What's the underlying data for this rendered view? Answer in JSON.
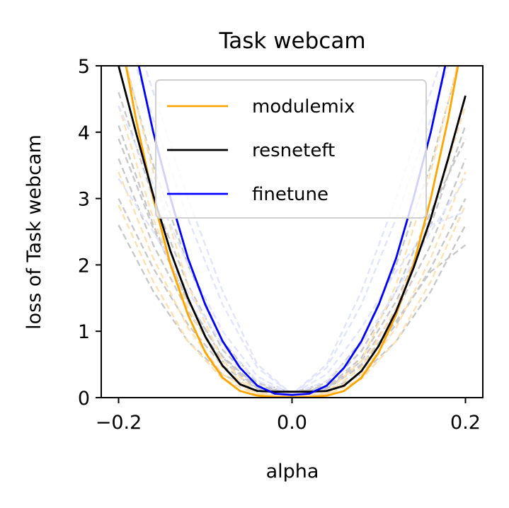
{
  "chart_data": {
    "type": "line",
    "title": "Task webcam",
    "xlabel": "alpha",
    "ylabel": "loss of Task webcam",
    "xlim": [
      -0.22,
      0.22
    ],
    "ylim": [
      0,
      5
    ],
    "xticks": [
      {
        "value": -0.2,
        "label": "−0.2"
      },
      {
        "value": 0.0,
        "label": "0.0"
      },
      {
        "value": 0.2,
        "label": "0.2"
      }
    ],
    "yticks": [
      {
        "value": 0,
        "label": "0"
      },
      {
        "value": 1,
        "label": "1"
      },
      {
        "value": 2,
        "label": "2"
      },
      {
        "value": 3,
        "label": "3"
      },
      {
        "value": 4,
        "label": "4"
      },
      {
        "value": 5,
        "label": "5"
      }
    ],
    "grid": false,
    "legend_position": "top-right",
    "series": [
      {
        "name": "modulemix",
        "color": "#ffa500",
        "style": "solid",
        "x": [
          -0.2,
          -0.18,
          -0.16,
          -0.14,
          -0.12,
          -0.1,
          -0.08,
          -0.06,
          -0.04,
          -0.02,
          0.0,
          0.02,
          0.04,
          0.06,
          0.08,
          0.1,
          0.12,
          0.14,
          0.16,
          0.18,
          0.2
        ],
        "y": [
          5.6,
          4.2,
          3.0,
          2.0,
          1.25,
          0.68,
          0.3,
          0.1,
          0.03,
          0.01,
          0.01,
          0.01,
          0.03,
          0.1,
          0.3,
          0.68,
          1.25,
          2.0,
          3.0,
          4.2,
          5.6
        ]
      },
      {
        "name": "resneteft",
        "color": "#000000",
        "style": "solid",
        "x": [
          -0.2,
          -0.18,
          -0.16,
          -0.14,
          -0.12,
          -0.1,
          -0.08,
          -0.06,
          -0.04,
          -0.02,
          0.0,
          0.02,
          0.04,
          0.06,
          0.08,
          0.1,
          0.12,
          0.14,
          0.16,
          0.18,
          0.2
        ],
        "y": [
          5.0,
          4.0,
          3.05,
          2.2,
          1.5,
          0.92,
          0.48,
          0.2,
          0.1,
          0.09,
          0.09,
          0.09,
          0.1,
          0.18,
          0.4,
          0.78,
          1.3,
          1.95,
          2.7,
          3.6,
          4.55
        ]
      },
      {
        "name": "finetune",
        "color": "#0000ff",
        "style": "solid",
        "x": [
          -0.2,
          -0.18,
          -0.16,
          -0.14,
          -0.12,
          -0.1,
          -0.08,
          -0.06,
          -0.04,
          -0.02,
          0.0,
          0.02,
          0.04,
          0.06,
          0.08,
          0.1,
          0.12,
          0.14,
          0.16,
          0.18,
          0.2
        ],
        "y": [
          6.6,
          5.2,
          4.0,
          3.0,
          2.1,
          1.4,
          0.85,
          0.45,
          0.18,
          0.06,
          0.04,
          0.06,
          0.18,
          0.45,
          0.85,
          1.4,
          2.1,
          3.0,
          4.0,
          5.2,
          6.6
        ]
      }
    ],
    "background_series": [
      {
        "color": "#c8c8c8",
        "style": "dashed",
        "x": [
          -0.2,
          -0.16,
          -0.12,
          -0.08,
          -0.04,
          0.0,
          0.04,
          0.08,
          0.12,
          0.16,
          0.2
        ],
        "y": [
          4.1,
          2.6,
          1.45,
          0.6,
          0.15,
          0.08,
          0.15,
          0.6,
          1.45,
          2.6,
          4.1
        ]
      },
      {
        "color": "#c8c8c8",
        "style": "dashed",
        "x": [
          -0.2,
          -0.16,
          -0.12,
          -0.08,
          -0.04,
          0.0,
          0.04,
          0.08,
          0.12,
          0.16,
          0.2
        ],
        "y": [
          3.0,
          1.95,
          1.1,
          0.48,
          0.13,
          0.08,
          0.13,
          0.48,
          1.1,
          1.95,
          3.0
        ]
      },
      {
        "color": "#c8c8c8",
        "style": "dashed",
        "x": [
          -0.2,
          -0.16,
          -0.12,
          -0.08,
          -0.04,
          0.0,
          0.04,
          0.08,
          0.12,
          0.16,
          0.2
        ],
        "y": [
          2.6,
          1.6,
          0.85,
          0.35,
          0.1,
          0.08,
          0.1,
          0.35,
          0.85,
          1.6,
          2.6
        ]
      },
      {
        "color": "#c8c8c8",
        "style": "dashed",
        "x": [
          -0.2,
          -0.16,
          -0.12,
          -0.08,
          -0.04,
          0.0,
          0.04,
          0.08,
          0.12,
          0.16,
          0.2
        ],
        "y": [
          5.4,
          3.5,
          2.0,
          0.85,
          0.22,
          0.08,
          0.22,
          0.85,
          2.0,
          3.5,
          5.4
        ]
      },
      {
        "color": "#c8c8c8",
        "style": "dashed",
        "x": [
          -0.2,
          -0.16,
          -0.12,
          -0.08,
          -0.04,
          0.0,
          0.04,
          0.08,
          0.12,
          0.16,
          0.2
        ],
        "y": [
          3.6,
          2.3,
          1.3,
          0.55,
          0.14,
          0.08,
          0.14,
          0.55,
          1.3,
          2.3,
          3.6
        ]
      },
      {
        "color": "#c8c8c8",
        "style": "dashed",
        "x": [
          -0.2,
          -0.16,
          -0.12,
          -0.08,
          -0.04,
          0.0,
          0.04,
          0.08,
          0.12,
          0.16,
          0.2
        ],
        "y": [
          4.6,
          3.0,
          1.7,
          0.72,
          0.18,
          0.08,
          0.14,
          0.5,
          1.15,
          1.9,
          2.3
        ]
      },
      {
        "color": "#c8c8c8",
        "style": "dashed",
        "x": [
          -0.2,
          -0.16,
          -0.12,
          -0.08,
          -0.04,
          0.0,
          0.04,
          0.08,
          0.12,
          0.16,
          0.2
        ],
        "y": [
          3.9,
          2.55,
          1.45,
          0.62,
          0.16,
          0.08,
          0.18,
          0.7,
          1.6,
          2.8,
          3.9
        ]
      },
      {
        "color": "#ffe0b0",
        "style": "dashed",
        "x": [
          -0.2,
          -0.16,
          -0.12,
          -0.08,
          -0.04,
          0.0,
          0.04,
          0.08,
          0.12,
          0.16,
          0.2
        ],
        "y": [
          2.9,
          1.75,
          0.85,
          0.28,
          0.04,
          0.0,
          0.04,
          0.28,
          0.85,
          1.75,
          2.9
        ]
      },
      {
        "color": "#ffe0b0",
        "style": "dashed",
        "x": [
          -0.2,
          -0.16,
          -0.12,
          -0.08,
          -0.04,
          0.0,
          0.04,
          0.08,
          0.12,
          0.16,
          0.2
        ],
        "y": [
          4.4,
          2.7,
          1.35,
          0.45,
          0.06,
          0.0,
          0.06,
          0.45,
          1.35,
          2.7,
          4.4
        ]
      },
      {
        "color": "#ffe0b0",
        "style": "dashed",
        "x": [
          -0.2,
          -0.16,
          -0.12,
          -0.08,
          -0.04,
          0.0,
          0.04,
          0.08,
          0.12,
          0.16,
          0.2
        ],
        "y": [
          3.4,
          2.1,
          1.05,
          0.35,
          0.05,
          0.0,
          0.05,
          0.35,
          1.05,
          2.1,
          3.4
        ]
      },
      {
        "color": "#ffe0b0",
        "style": "dashed",
        "x": [
          -0.2,
          -0.16,
          -0.12,
          -0.08,
          -0.04,
          0.0,
          0.04,
          0.08,
          0.12,
          0.16,
          0.2
        ],
        "y": [
          5.5,
          3.4,
          1.7,
          0.55,
          0.08,
          0.0,
          0.08,
          0.55,
          1.7,
          3.4,
          5.5
        ]
      },
      {
        "color": "#e0e4ff",
        "style": "dashed",
        "x": [
          -0.2,
          -0.16,
          -0.12,
          -0.08,
          -0.04,
          0.0,
          0.04,
          0.08,
          0.12,
          0.16,
          0.2
        ],
        "y": [
          3.3,
          2.5,
          1.6,
          0.8,
          0.25,
          0.05,
          0.25,
          0.8,
          1.6,
          2.5,
          3.3
        ]
      },
      {
        "color": "#e0e4ff",
        "style": "dashed",
        "x": [
          -0.2,
          -0.16,
          -0.12,
          -0.08,
          -0.04,
          0.0,
          0.04,
          0.08,
          0.12,
          0.16,
          0.2
        ],
        "y": [
          5.8,
          4.2,
          2.7,
          1.4,
          0.45,
          0.05,
          0.45,
          1.4,
          2.7,
          4.2,
          5.8
        ]
      },
      {
        "color": "#e0e4ff",
        "style": "dashed",
        "x": [
          -0.2,
          -0.16,
          -0.12,
          -0.08,
          -0.04,
          0.0,
          0.04,
          0.08,
          0.12,
          0.16,
          0.2
        ],
        "y": [
          6.2,
          4.6,
          3.0,
          1.6,
          0.5,
          0.05,
          0.5,
          1.6,
          3.0,
          4.6,
          6.2
        ]
      },
      {
        "color": "#e0e4ff",
        "style": "dashed",
        "x": [
          -0.2,
          -0.16,
          -0.12,
          -0.08,
          -0.04,
          0.0,
          0.04,
          0.08,
          0.12,
          0.16,
          0.2
        ],
        "y": [
          4.4,
          3.2,
          2.0,
          1.0,
          0.32,
          0.05,
          0.35,
          1.05,
          1.9,
          2.6,
          2.8
        ]
      }
    ]
  }
}
